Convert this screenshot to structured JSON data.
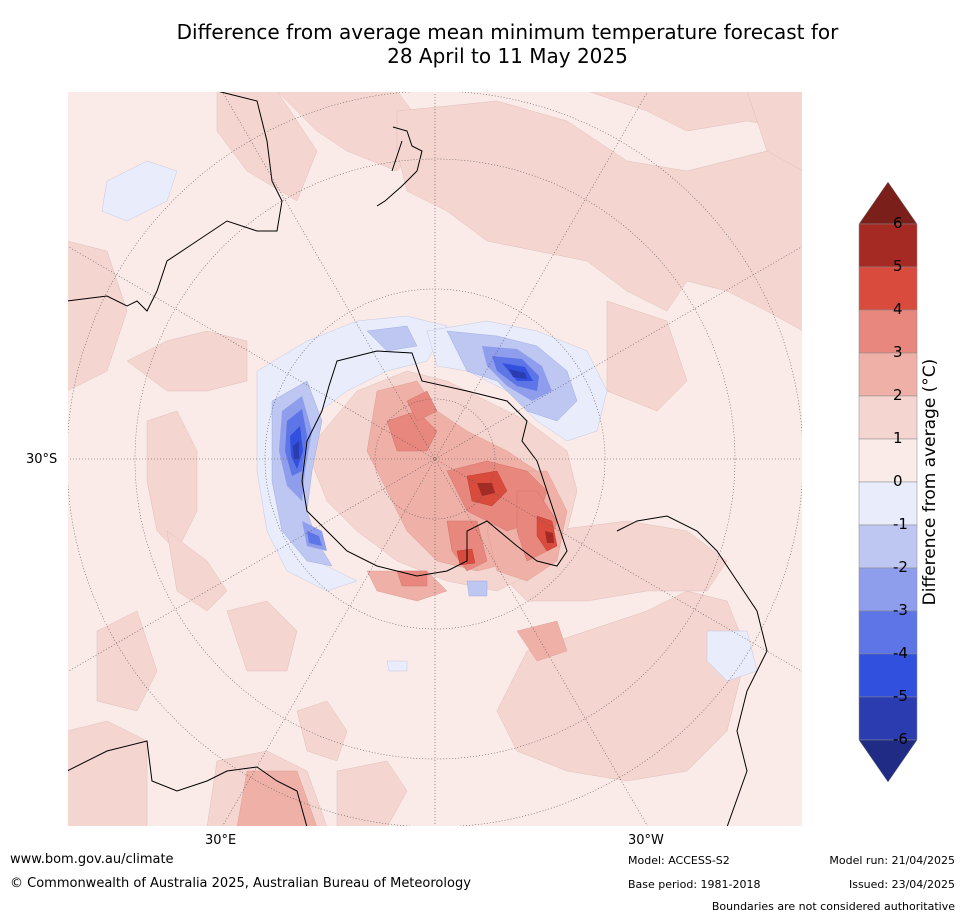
{
  "title_line1": "Difference from average mean minimum temperature forecast for",
  "title_line2": "28 April to 11 May 2025",
  "map": {
    "projection": "south-polar-stereographic",
    "lat_label": "30°S",
    "lon_labels": [
      "30°E",
      "30°W"
    ]
  },
  "colorbar": {
    "label": "Difference from average (°C)",
    "ticks": [
      "6",
      "5",
      "4",
      "3",
      "2",
      "1",
      "0",
      "-1",
      "-2",
      "-3",
      "-4",
      "-5",
      "-6"
    ],
    "colors": {
      "over": "#7a1f1a",
      "5_6": "#a52a24",
      "4_5": "#d94b3d",
      "3_4": "#e8877d",
      "2_3": "#efb0a8",
      "1_2": "#f5d5d0",
      "0_1": "#fbebe8",
      "m1_0": "#e8ecfb",
      "m2_m1": "#bec6f2",
      "m3_m2": "#8f9ded",
      "m4_m3": "#5d75e6",
      "m5_m4": "#3150de",
      "m6_m5": "#2a3caf",
      "under": "#1f2b85"
    }
  },
  "footer": {
    "website": "www.bom.gov.au/climate",
    "copyright": "© Commonwealth of Australia 2025, Australian Bureau of Meteorology",
    "model": "Model: ACCESS-S2",
    "base_period": "Base period: 1981-2018",
    "model_run": "Model run: 21/04/2025",
    "issued": "Issued: 23/04/2025",
    "boundaries": "Boundaries are not considered authoritative"
  }
}
